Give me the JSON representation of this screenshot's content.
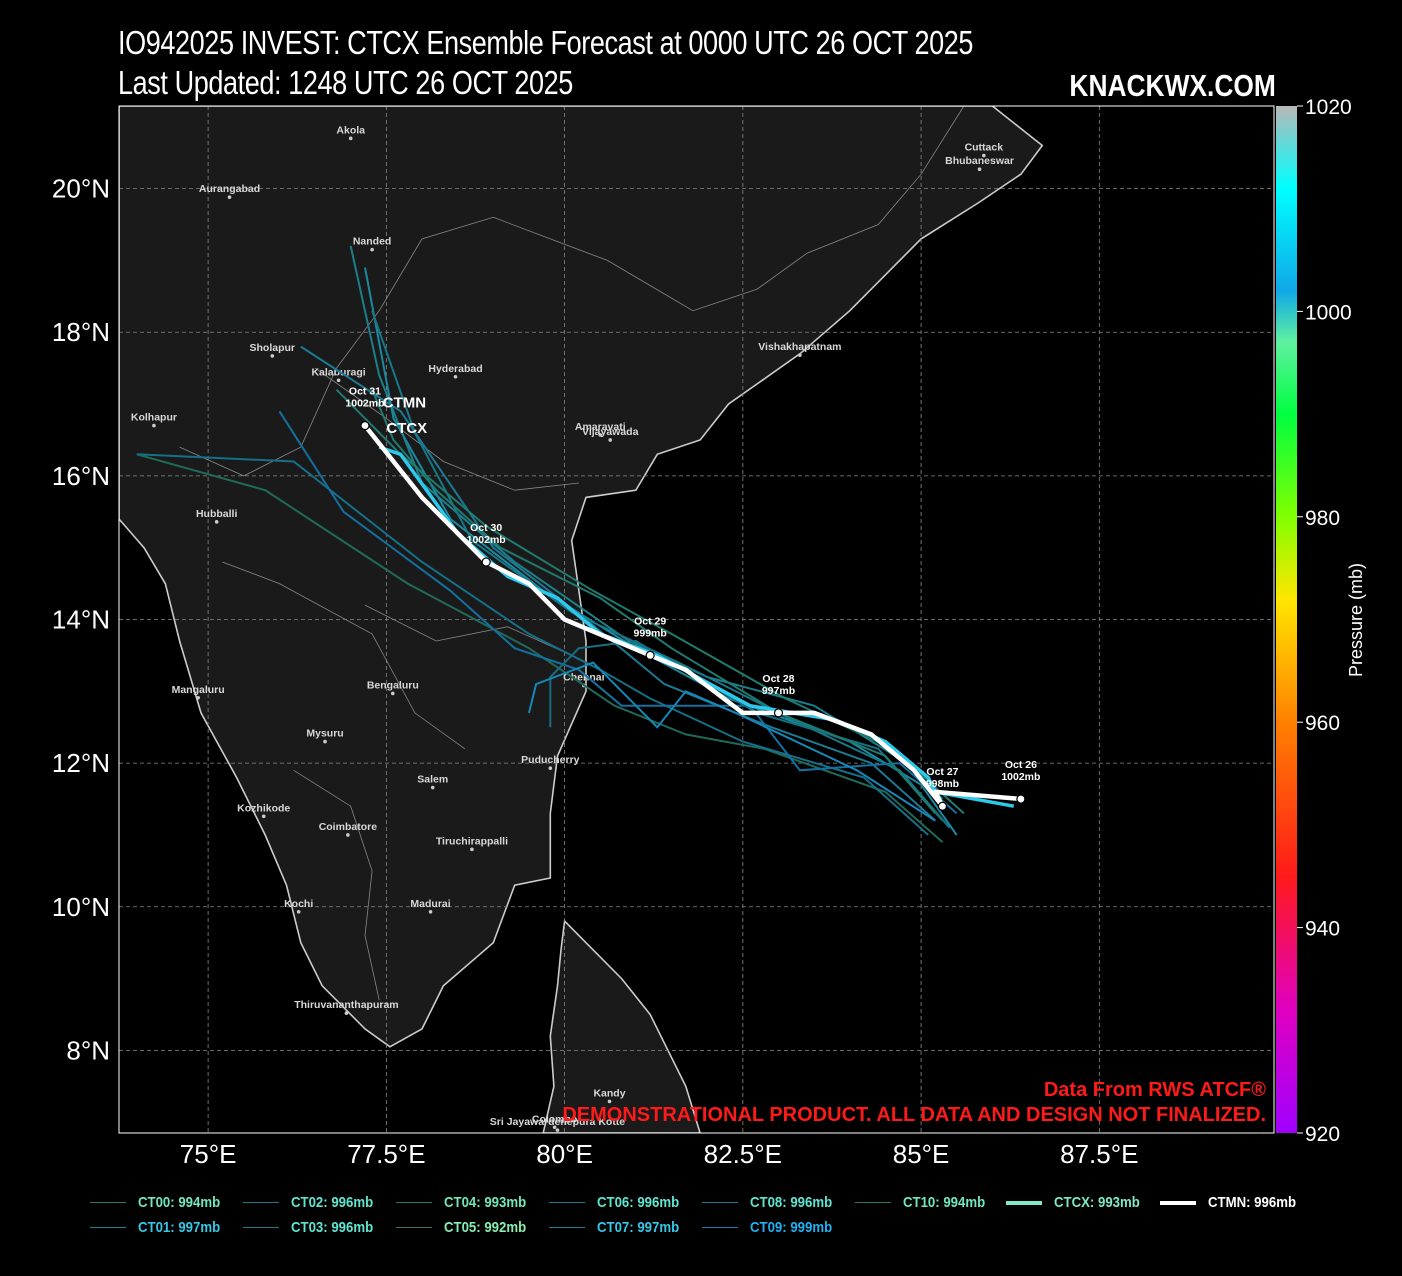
{
  "header": {
    "title_line1": "IO942025 INVEST: CTCX Ensemble Forecast at 0000 UTC 26 OCT 2025",
    "title_line2": "Last Updated: 1248 UTC 26 OCT 2025",
    "brand": "KNACKWX.COM"
  },
  "map": {
    "lon_range": [
      73.75,
      89.95
    ],
    "lat_range": [
      6.85,
      21.15
    ],
    "lon_ticks": [
      {
        "value": 75,
        "label": "75°E"
      },
      {
        "value": 77.5,
        "label": "77.5°E"
      },
      {
        "value": 80,
        "label": "80°E"
      },
      {
        "value": 82.5,
        "label": "82.5°E"
      },
      {
        "value": 85,
        "label": "85°E"
      },
      {
        "value": 87.5,
        "label": "87.5°E"
      }
    ],
    "lat_ticks": [
      {
        "value": 8,
        "label": "8°N"
      },
      {
        "value": 10,
        "label": "10°N"
      },
      {
        "value": 12,
        "label": "12°N"
      },
      {
        "value": 14,
        "label": "14°N"
      },
      {
        "value": 16,
        "label": "16°N"
      },
      {
        "value": 18,
        "label": "18°N"
      },
      {
        "value": 20,
        "label": "20°N"
      }
    ],
    "land_color": "#1a1a1a",
    "ocean_color": "#000000",
    "coast_color": "#cccccc",
    "cities": [
      {
        "name": "Akola",
        "lon": 77.0,
        "lat": 20.7
      },
      {
        "name": "Aurangabad",
        "lon": 75.3,
        "lat": 19.88
      },
      {
        "name": "Nanded",
        "lon": 77.3,
        "lat": 19.15
      },
      {
        "name": "Sholapur",
        "lon": 75.9,
        "lat": 17.67
      },
      {
        "name": "Kalaburagi",
        "lon": 76.83,
        "lat": 17.33
      },
      {
        "name": "Hyderabad",
        "lon": 78.47,
        "lat": 17.38
      },
      {
        "name": "Kolhapur",
        "lon": 74.24,
        "lat": 16.7
      },
      {
        "name": "Amaravati",
        "lon": 80.5,
        "lat": 16.57
      },
      {
        "name": "Vijayawada",
        "lon": 80.64,
        "lat": 16.5
      },
      {
        "name": "Vishakhapatnam",
        "lon": 83.3,
        "lat": 17.68
      },
      {
        "name": "Cuttack",
        "lon": 85.88,
        "lat": 20.46
      },
      {
        "name": "Bhubaneswar",
        "lon": 85.82,
        "lat": 20.27
      },
      {
        "name": "Hubballi",
        "lon": 75.12,
        "lat": 15.36
      },
      {
        "name": "Chennai",
        "lon": 80.27,
        "lat": 13.08
      },
      {
        "name": "Mangaluru",
        "lon": 74.86,
        "lat": 12.91
      },
      {
        "name": "Bengaluru",
        "lon": 77.59,
        "lat": 12.97
      },
      {
        "name": "Mysuru",
        "lon": 76.64,
        "lat": 12.3
      },
      {
        "name": "Puducherry",
        "lon": 79.8,
        "lat": 11.93
      },
      {
        "name": "Salem",
        "lon": 78.15,
        "lat": 11.66
      },
      {
        "name": "Kozhikode",
        "lon": 75.78,
        "lat": 11.26
      },
      {
        "name": "Coimbatore",
        "lon": 76.96,
        "lat": 11.0
      },
      {
        "name": "Tiruchirappalli",
        "lon": 78.7,
        "lat": 10.8
      },
      {
        "name": "Kochi",
        "lon": 76.27,
        "lat": 9.93
      },
      {
        "name": "Madurai",
        "lon": 78.12,
        "lat": 9.93
      },
      {
        "name": "Thiruvananthapuram",
        "lon": 76.94,
        "lat": 8.52
      },
      {
        "name": "Kandy",
        "lon": 80.63,
        "lat": 7.29
      },
      {
        "name": "Colombo",
        "lon": 79.86,
        "lat": 6.93
      },
      {
        "name": "Sri Jayawardenepura Kotte",
        "lon": 79.9,
        "lat": 6.89
      }
    ],
    "source_note": "Data From RWS ATCF®",
    "disclaimer": "DEMONSTRATIONAL PRODUCT. ALL DATA AND DESIGN NOT FINALIZED."
  },
  "colorbar": {
    "label": "Pressure (mb)",
    "ticks": [
      {
        "value": 1020,
        "label": "1020"
      },
      {
        "value": 1000,
        "label": "1000"
      },
      {
        "value": 980,
        "label": "980"
      },
      {
        "value": 960,
        "label": "960"
      },
      {
        "value": 940,
        "label": "940"
      },
      {
        "value": 920,
        "label": "920"
      }
    ]
  },
  "chart_data": {
    "type": "map-tracks",
    "consensus_track": {
      "name": "CTMN",
      "color": "#ffffff",
      "points": [
        [
          86.4,
          11.5
        ],
        [
          85.2,
          11.6
        ],
        [
          85.3,
          11.4
        ],
        [
          84.9,
          11.9
        ],
        [
          84.3,
          12.4
        ],
        [
          83.5,
          12.7
        ],
        [
          83.0,
          12.7
        ],
        [
          82.5,
          12.7
        ],
        [
          81.7,
          13.3
        ],
        [
          81.2,
          13.5
        ],
        [
          80.0,
          14.0
        ],
        [
          79.5,
          14.5
        ],
        [
          78.9,
          14.8
        ],
        [
          78.0,
          15.7
        ],
        [
          77.2,
          16.7
        ]
      ],
      "markers": [
        {
          "lon": 86.4,
          "lat": 11.5,
          "date": "Oct 26",
          "pressure": "1002mb"
        },
        {
          "lon": 85.3,
          "lat": 11.4,
          "date": "Oct 27",
          "pressure": "998mb"
        },
        {
          "lon": 83.0,
          "lat": 12.7,
          "date": "Oct 28",
          "pressure": "997mb"
        },
        {
          "lon": 81.2,
          "lat": 13.5,
          "date": "Oct 29",
          "pressure": "999mb"
        },
        {
          "lon": 78.9,
          "lat": 14.8,
          "date": "Oct 30",
          "pressure": "1002mb"
        },
        {
          "lon": 77.2,
          "lat": 16.7,
          "date": "Oct 31",
          "pressure": "1002mb"
        }
      ]
    },
    "ctcx_track": {
      "name": "CTCX",
      "color": "#2dc8ea",
      "points": [
        [
          86.3,
          11.4
        ],
        [
          85.2,
          11.6
        ],
        [
          85.1,
          11.8
        ],
        [
          84.5,
          12.3
        ],
        [
          83.8,
          12.6
        ],
        [
          82.6,
          12.8
        ],
        [
          81.3,
          13.5
        ],
        [
          80.5,
          13.8
        ],
        [
          79.9,
          14.3
        ],
        [
          79.2,
          14.6
        ],
        [
          78.5,
          15.2
        ],
        [
          77.7,
          16.3
        ],
        [
          77.4,
          16.4
        ]
      ]
    },
    "member_tracks": [
      {
        "name": "CT00",
        "color": "#1a7f8a",
        "points": [
          [
            85.3,
            11.5
          ],
          [
            84.8,
            12.0
          ],
          [
            83.5,
            12.8
          ],
          [
            82.0,
            13.2
          ],
          [
            80.9,
            13.7
          ],
          [
            79.3,
            14.8
          ],
          [
            78.0,
            15.9
          ],
          [
            77.4,
            17.4
          ],
          [
            77.0,
            19.2
          ]
        ]
      },
      {
        "name": "CT01",
        "color": "#1a8aa0",
        "points": [
          [
            85.5,
            11.0
          ],
          [
            85.0,
            11.7
          ],
          [
            84.0,
            12.3
          ],
          [
            82.3,
            12.9
          ],
          [
            81.0,
            13.6
          ],
          [
            79.7,
            14.4
          ],
          [
            78.4,
            15.4
          ],
          [
            77.6,
            16.8
          ],
          [
            77.2,
            18.9
          ]
        ]
      },
      {
        "name": "CT02",
        "color": "#167888",
        "points": [
          [
            85.4,
            11.1
          ],
          [
            84.7,
            11.9
          ],
          [
            83.2,
            12.6
          ],
          [
            81.6,
            13.4
          ],
          [
            80.1,
            14.1
          ],
          [
            78.7,
            15.1
          ],
          [
            77.9,
            16.6
          ],
          [
            77.3,
            18.3
          ]
        ]
      },
      {
        "name": "CT03",
        "color": "#1c7a95",
        "points": [
          [
            85.2,
            11.2
          ],
          [
            84.3,
            12.0
          ],
          [
            82.9,
            12.5
          ],
          [
            81.4,
            13.1
          ],
          [
            80.3,
            14.0
          ],
          [
            79.0,
            15.0
          ],
          [
            77.7,
            16.9
          ],
          [
            76.3,
            17.8
          ]
        ]
      },
      {
        "name": "CT04",
        "color": "#1f7a70",
        "points": [
          [
            85.6,
            11.3
          ],
          [
            84.6,
            12.2
          ],
          [
            83.1,
            12.9
          ],
          [
            81.5,
            13.8
          ],
          [
            80.4,
            14.4
          ],
          [
            78.9,
            15.3
          ],
          [
            77.7,
            16.3
          ],
          [
            76.8,
            17.2
          ]
        ]
      },
      {
        "name": "CT05",
        "color": "#206a5a",
        "points": [
          [
            85.3,
            10.9
          ],
          [
            84.5,
            11.6
          ],
          [
            82.8,
            12.2
          ],
          [
            81.7,
            12.4
          ],
          [
            80.7,
            12.8
          ],
          [
            79.5,
            13.6
          ],
          [
            77.8,
            14.5
          ],
          [
            75.8,
            15.8
          ],
          [
            74.0,
            16.3
          ]
        ]
      },
      {
        "name": "CT06",
        "color": "#15708a",
        "points": [
          [
            85.1,
            11.0
          ],
          [
            84.2,
            11.8
          ],
          [
            82.5,
            12.3
          ],
          [
            81.2,
            12.9
          ],
          [
            80.5,
            13.3
          ],
          [
            79.5,
            13.8
          ],
          [
            78.0,
            14.8
          ],
          [
            76.2,
            16.2
          ],
          [
            74.0,
            16.3
          ]
        ]
      },
      {
        "name": "CT07",
        "color": "#1470a0",
        "points": [
          [
            85.5,
            11.3
          ],
          [
            84.7,
            12.0
          ],
          [
            83.3,
            11.9
          ],
          [
            82.6,
            12.8
          ],
          [
            80.8,
            12.8
          ],
          [
            80.2,
            13.3
          ],
          [
            79.3,
            13.6
          ],
          [
            78.4,
            14.4
          ],
          [
            76.9,
            15.5
          ],
          [
            76.0,
            16.9
          ]
        ]
      },
      {
        "name": "CT08",
        "color": "#166e80",
        "points": [
          [
            85.3,
            11.2
          ],
          [
            84.4,
            12.2
          ],
          [
            82.7,
            12.7
          ],
          [
            81.0,
            13.7
          ],
          [
            80.2,
            13.6
          ],
          [
            79.8,
            13.2
          ],
          [
            79.8,
            12.5
          ]
        ]
      },
      {
        "name": "CT09",
        "color": "#1688b8",
        "points": [
          [
            85.2,
            11.2
          ],
          [
            84.1,
            11.9
          ],
          [
            82.4,
            12.7
          ],
          [
            81.7,
            13.0
          ],
          [
            81.3,
            12.5
          ],
          [
            80.4,
            13.4
          ],
          [
            79.6,
            13.1
          ],
          [
            79.5,
            12.7
          ]
        ]
      },
      {
        "name": "CT10",
        "color": "#1f7a70",
        "points": [
          [
            85.2,
            11.3
          ],
          [
            84.5,
            12.1
          ],
          [
            83.0,
            12.7
          ],
          [
            81.5,
            13.6
          ],
          [
            80.5,
            14.3
          ],
          [
            79.1,
            15.0
          ],
          [
            78.2,
            15.8
          ],
          [
            77.6,
            16.5
          ],
          [
            77.3,
            17.2
          ]
        ]
      }
    ],
    "track_labels": [
      {
        "text": "CTMN",
        "lon": 77.45,
        "lat": 16.95
      },
      {
        "text": "CTCX",
        "lon": 77.5,
        "lat": 16.6
      }
    ]
  },
  "legend": {
    "items": [
      {
        "label": "CT00: 994mb",
        "color": "#2a7a6a",
        "text_color": "#6fe8c0",
        "row": 0,
        "col": 0
      },
      {
        "label": "CT01: 997mb",
        "color": "#1d7f94",
        "text_color": "#35c8e8",
        "row": 1,
        "col": 0
      },
      {
        "label": "CT02: 996mb",
        "color": "#1d7890",
        "text_color": "#5ee6d0",
        "row": 0,
        "col": 1
      },
      {
        "label": "CT03: 996mb",
        "color": "#1d7890",
        "text_color": "#5ee6d0",
        "row": 1,
        "col": 1
      },
      {
        "label": "CT04: 993mb",
        "color": "#2a7a6a",
        "text_color": "#70e8b8",
        "row": 0,
        "col": 2
      },
      {
        "label": "CT05: 992mb",
        "color": "#2f7a5a",
        "text_color": "#86eeb0",
        "row": 1,
        "col": 2
      },
      {
        "label": "CT06: 996mb",
        "color": "#1d7890",
        "text_color": "#5ee6d0",
        "row": 0,
        "col": 3
      },
      {
        "label": "CT07: 997mb",
        "color": "#1d7f94",
        "text_color": "#35c8e8",
        "row": 1,
        "col": 3
      },
      {
        "label": "CT08: 996mb",
        "color": "#1d7890",
        "text_color": "#5ee6d0",
        "row": 0,
        "col": 4
      },
      {
        "label": "CT09: 999mb",
        "color": "#1a7aa8",
        "text_color": "#22b0f0",
        "row": 1,
        "col": 4
      },
      {
        "label": "CT10: 994mb",
        "color": "#2a7a6a",
        "text_color": "#6fe8c0",
        "row": 0,
        "col": 5
      },
      {
        "label": "CTCX: 993mb",
        "color": "#7ee8c8",
        "text_color": "#7ee8c8",
        "row": 0,
        "col": 6,
        "thick": true
      },
      {
        "label": "CTMN: 996mb",
        "color": "#ffffff",
        "text_color": "#ffffff",
        "row": 0,
        "col": 7,
        "thick": true
      }
    ]
  }
}
